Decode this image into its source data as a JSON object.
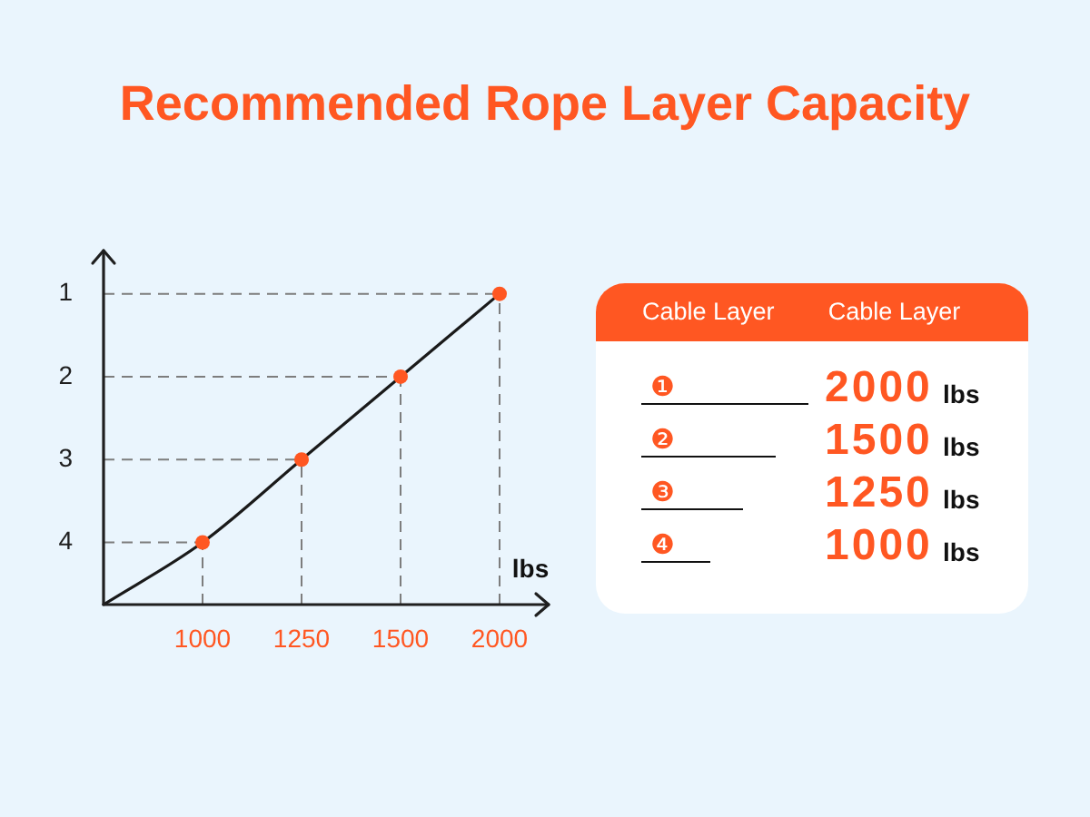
{
  "chart_data": [
    {
      "type": "line",
      "title": "Recommended Rope Layer Capacity",
      "xlabel": "lbs",
      "categories": [
        null,
        "1000",
        "1250",
        "1500",
        "2000"
      ],
      "series": [
        {
          "color": "#1a1a1a",
          "colors": [
            null,
            "#ff5722",
            "#ff5722",
            "#ff5722",
            "#ff5722"
          ],
          "values": [
            4.75,
            4,
            3,
            2,
            1
          ]
        }
      ],
      "ylim": [
        4.75,
        0.5
      ],
      "yticks": [
        1,
        2,
        3,
        4
      ],
      "marker": "circle",
      "ref_lines": [
        {
          "axis": "y",
          "value": 1,
          "color": "#7d7d7d",
          "line_style": "dashed"
        },
        {
          "axis": "y",
          "value": 2,
          "color": "#7d7d7d",
          "line_style": "dashed"
        },
        {
          "axis": "y",
          "value": 3,
          "color": "#7d7d7d",
          "line_style": "dashed"
        },
        {
          "axis": "y",
          "value": 4,
          "color": "#7d7d7d",
          "line_style": "dashed"
        },
        {
          "axis": "x",
          "value": "1000",
          "color": "#7d7d7d",
          "line_style": "dashed"
        },
        {
          "axis": "x",
          "value": "1250",
          "color": "#7d7d7d",
          "line_style": "dashed"
        },
        {
          "axis": "x",
          "value": "1500",
          "color": "#7d7d7d",
          "line_style": "dashed"
        },
        {
          "axis": "x",
          "value": "2000",
          "color": "#7d7d7d",
          "line_style": "dashed"
        }
      ]
    },
    {
      "type": "other",
      "annotations": [
        "Cable Layer",
        "Cable Layer"
      ],
      "categories": [
        "❶",
        "❷",
        "❸",
        "❹"
      ],
      "value_labels": [
        "2000 lbs",
        "1500 lbs",
        "1250 lbs",
        "1000 lbs"
      ],
      "color": "#ff5722"
    }
  ]
}
